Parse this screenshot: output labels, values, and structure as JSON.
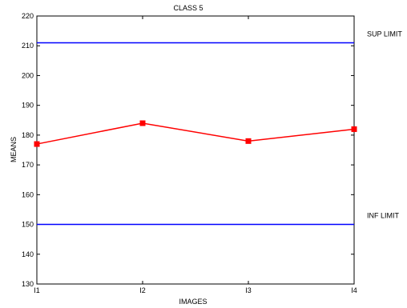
{
  "chart_data": {
    "type": "line",
    "title": "CLASS 5",
    "xlabel": "IMAGES",
    "ylabel": "MEANS",
    "categories": [
      "I1",
      "I2",
      "I3",
      "I4"
    ],
    "ylim": [
      130,
      220
    ],
    "yticks": [
      130,
      140,
      150,
      160,
      170,
      180,
      190,
      200,
      210,
      220
    ],
    "grid": false,
    "series": [
      {
        "values": [
          177,
          184,
          178,
          182
        ],
        "color": "#ff0000",
        "marker": "square"
      }
    ],
    "reference_lines": [
      {
        "label": "SUP LIMIT",
        "y": 211,
        "color": "#0000ff"
      },
      {
        "label": "INF LIMIT",
        "y": 150,
        "color": "#0000ff"
      }
    ]
  }
}
